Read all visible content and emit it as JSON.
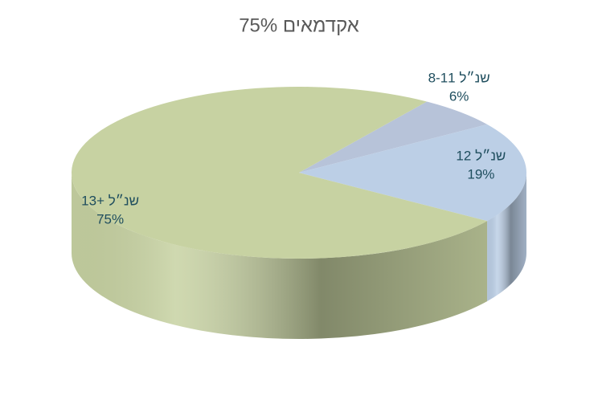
{
  "chart_data": {
    "type": "pie",
    "title": "75% אקדמאים",
    "categories": [
      "8-11 שנ״ל",
      "12 שנ״ל",
      "13+ שנ״ל"
    ],
    "values": [
      6,
      19,
      75
    ],
    "value_labels": [
      "6%",
      "19%",
      "75%"
    ],
    "colors": [
      "#b7c3d9",
      "#bccfe6",
      "#c7d2a2"
    ]
  }
}
